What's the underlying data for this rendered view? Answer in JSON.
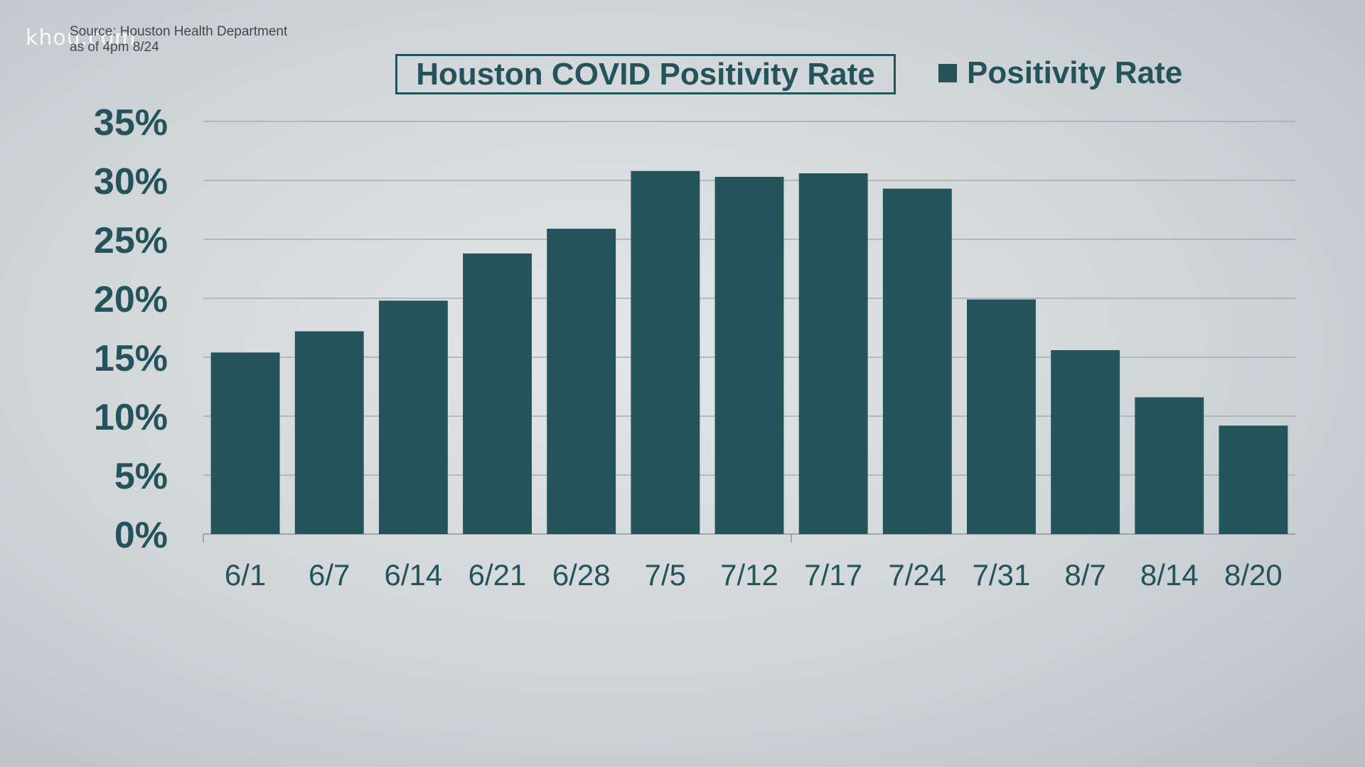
{
  "watermark": "khou.com",
  "source": {
    "line1": "Source: Houston Health Department",
    "line2": "as of 4pm 8/24"
  },
  "chart_data": {
    "type": "bar",
    "title": "Houston COVID Positivity Rate",
    "categories": [
      "6/1",
      "6/7",
      "6/14",
      "6/21",
      "6/28",
      "7/5",
      "7/12",
      "7/17",
      "7/24",
      "7/31",
      "8/7",
      "8/14",
      "8/20"
    ],
    "series": [
      {
        "name": "Positivity Rate",
        "values": [
          15.4,
          17.2,
          19.8,
          23.8,
          25.9,
          30.8,
          30.3,
          30.6,
          29.3,
          19.9,
          15.6,
          11.6,
          9.2
        ]
      }
    ],
    "yticks": [
      "0%",
      "5%",
      "10%",
      "15%",
      "20%",
      "25%",
      "30%",
      "35%"
    ],
    "ylim": [
      0,
      35
    ],
    "grid": true,
    "legend_position": "top-right",
    "bar_color": "#24535c",
    "text_color": "#24535c"
  }
}
